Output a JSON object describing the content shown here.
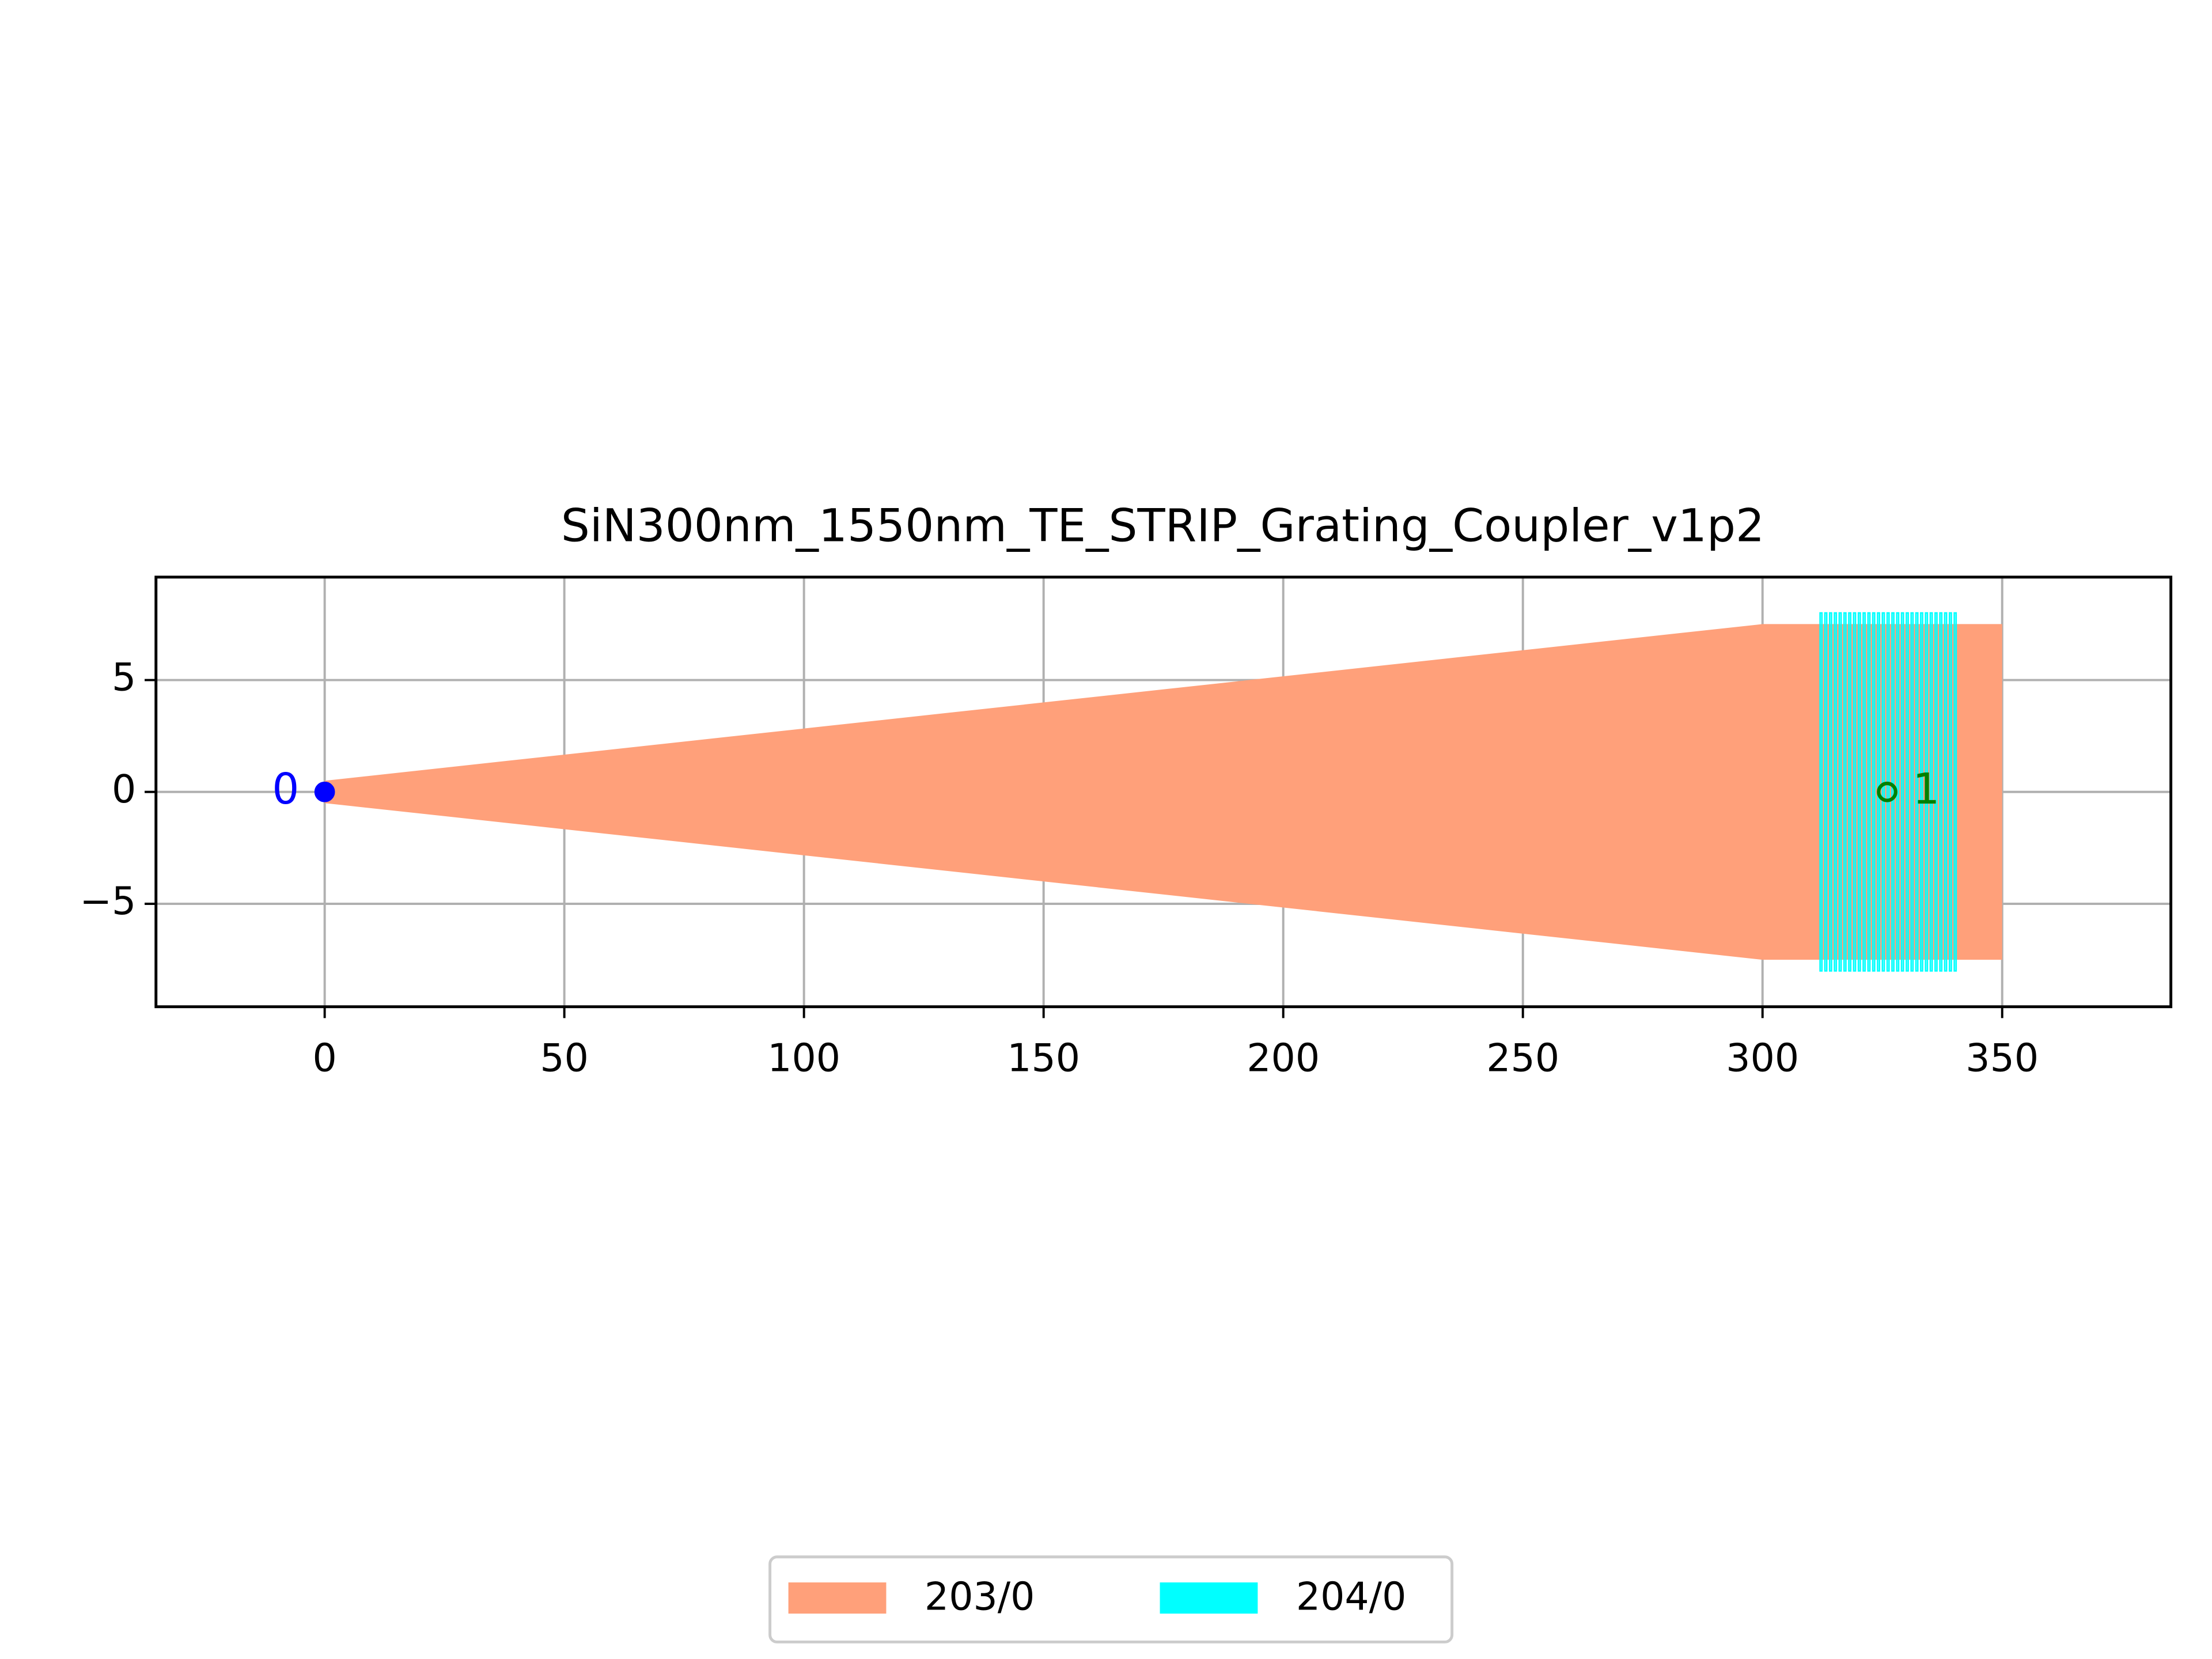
{
  "chart_data": {
    "type": "layout",
    "title": "SiN300nm_1550nm_TE_STRIP_Grating_Coupler_v1p2",
    "xlim": [
      -35.2,
      385.2
    ],
    "ylim": [
      -9.6,
      9.6
    ],
    "xticks": [
      0,
      50,
      100,
      150,
      200,
      250,
      300,
      350
    ],
    "yticks": [
      {
        "value": -5,
        "label": "−5"
      },
      0,
      5
    ],
    "grid": true,
    "legend": "bottom",
    "series": [
      {
        "name": "203/0",
        "color": "#ffa07a",
        "polygons": [
          {
            "x": [
              0,
              300,
              350,
              350,
              300,
              0
            ],
            "y": [
              0.5,
              7.5,
              7.5,
              -7.5,
              -7.5,
              -0.5
            ]
          }
        ]
      },
      {
        "name": "204/0",
        "color": "#00ffff",
        "polygons": [
          {
            "x": [
              312,
              312.4,
              312.4,
              312
            ],
            "y": [
              -8,
              -8,
              8,
              8
            ]
          },
          {
            "x": [
              313,
              313.4,
              313.4,
              313
            ],
            "y": [
              -8,
              -8,
              8,
              8
            ]
          },
          {
            "x": [
              314,
              314.4,
              314.4,
              314
            ],
            "y": [
              -8,
              -8,
              8,
              8
            ]
          },
          {
            "x": [
              315,
              315.4,
              315.4,
              315
            ],
            "y": [
              -8,
              -8,
              8,
              8
            ]
          },
          {
            "x": [
              316,
              316.4,
              316.4,
              316
            ],
            "y": [
              -8,
              -8,
              8,
              8
            ]
          },
          {
            "x": [
              317,
              317.4,
              317.4,
              317
            ],
            "y": [
              -8,
              -8,
              8,
              8
            ]
          },
          {
            "x": [
              318,
              318.4,
              318.4,
              318
            ],
            "y": [
              -8,
              -8,
              8,
              8
            ]
          },
          {
            "x": [
              319,
              319.4,
              319.4,
              319
            ],
            "y": [
              -8,
              -8,
              8,
              8
            ]
          },
          {
            "x": [
              320,
              320.4,
              320.4,
              320
            ],
            "y": [
              -8,
              -8,
              8,
              8
            ]
          },
          {
            "x": [
              321,
              321.4,
              321.4,
              321
            ],
            "y": [
              -8,
              -8,
              8,
              8
            ]
          },
          {
            "x": [
              322,
              322.4,
              322.4,
              322
            ],
            "y": [
              -8,
              -8,
              8,
              8
            ]
          },
          {
            "x": [
              323,
              323.4,
              323.4,
              323
            ],
            "y": [
              -8,
              -8,
              8,
              8
            ]
          },
          {
            "x": [
              324,
              324.4,
              324.4,
              324
            ],
            "y": [
              -8,
              -8,
              8,
              8
            ]
          },
          {
            "x": [
              325,
              325.4,
              325.4,
              325
            ],
            "y": [
              -8,
              -8,
              8,
              8
            ]
          },
          {
            "x": [
              326,
              326.4,
              326.4,
              326
            ],
            "y": [
              -8,
              -8,
              8,
              8
            ]
          },
          {
            "x": [
              327,
              327.4,
              327.4,
              327
            ],
            "y": [
              -8,
              -8,
              8,
              8
            ]
          },
          {
            "x": [
              328,
              328.4,
              328.4,
              328
            ],
            "y": [
              -8,
              -8,
              8,
              8
            ]
          },
          {
            "x": [
              329,
              329.4,
              329.4,
              329
            ],
            "y": [
              -8,
              -8,
              8,
              8
            ]
          },
          {
            "x": [
              330,
              330.4,
              330.4,
              330
            ],
            "y": [
              -8,
              -8,
              8,
              8
            ]
          },
          {
            "x": [
              331,
              331.4,
              331.4,
              331
            ],
            "y": [
              -8,
              -8,
              8,
              8
            ]
          },
          {
            "x": [
              332,
              332.4,
              332.4,
              332
            ],
            "y": [
              -8,
              -8,
              8,
              8
            ]
          },
          {
            "x": [
              333,
              333.4,
              333.4,
              333
            ],
            "y": [
              -8,
              -8,
              8,
              8
            ]
          },
          {
            "x": [
              334,
              334.4,
              334.4,
              334
            ],
            "y": [
              -8,
              -8,
              8,
              8
            ]
          },
          {
            "x": [
              335,
              335.4,
              335.4,
              335
            ],
            "y": [
              -8,
              -8,
              8,
              8
            ]
          },
          {
            "x": [
              336,
              336.4,
              336.4,
              336
            ],
            "y": [
              -8,
              -8,
              8,
              8
            ]
          },
          {
            "x": [
              337,
              337.4,
              337.4,
              337
            ],
            "y": [
              -8,
              -8,
              8,
              8
            ]
          },
          {
            "x": [
              338,
              338.4,
              338.4,
              338
            ],
            "y": [
              -8,
              -8,
              8,
              8
            ]
          },
          {
            "x": [
              339,
              339.4,
              339.4,
              339
            ],
            "y": [
              -8,
              -8,
              8,
              8
            ]
          },
          {
            "x": [
              340,
              340.4,
              340.4,
              340
            ],
            "y": [
              -8,
              -8,
              8,
              8
            ]
          }
        ]
      }
    ],
    "ports": [
      {
        "name": "0",
        "x": 0,
        "y": 0,
        "color": "#0000ff",
        "filled": true
      },
      {
        "name": "1",
        "x": 326,
        "y": 0,
        "color": "#008000",
        "filled": false
      }
    ]
  }
}
